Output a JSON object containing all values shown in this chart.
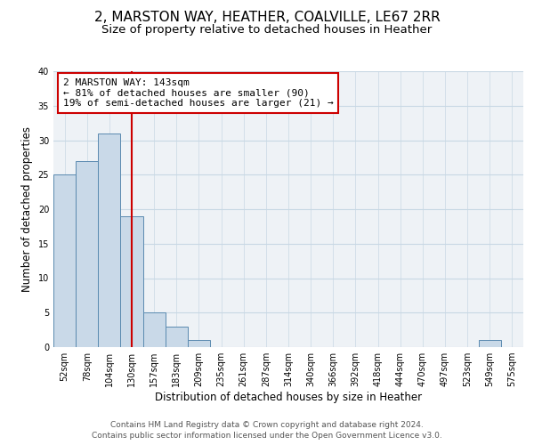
{
  "title": "2, MARSTON WAY, HEATHER, COALVILLE, LE67 2RR",
  "subtitle": "Size of property relative to detached houses in Heather",
  "xlabel": "Distribution of detached houses by size in Heather",
  "ylabel": "Number of detached properties",
  "footer_lines": [
    "Contains HM Land Registry data © Crown copyright and database right 2024.",
    "Contains public sector information licensed under the Open Government Licence v3.0."
  ],
  "bin_labels": [
    "52sqm",
    "78sqm",
    "104sqm",
    "130sqm",
    "157sqm",
    "183sqm",
    "209sqm",
    "235sqm",
    "261sqm",
    "287sqm",
    "314sqm",
    "340sqm",
    "366sqm",
    "392sqm",
    "418sqm",
    "444sqm",
    "470sqm",
    "497sqm",
    "523sqm",
    "549sqm",
    "575sqm"
  ],
  "bar_values": [
    25,
    27,
    31,
    19,
    5,
    3,
    1,
    0,
    0,
    0,
    0,
    0,
    0,
    0,
    0,
    0,
    0,
    0,
    0,
    1,
    0
  ],
  "bar_color": "#c9d9e8",
  "bar_edge_color": "#5a8ab0",
  "vline_x": 3.5,
  "vline_color": "#cc0000",
  "annotation_line1": "2 MARSTON WAY: 143sqm",
  "annotation_line2": "← 81% of detached houses are smaller (90)",
  "annotation_line3": "19% of semi-detached houses are larger (21) →",
  "ylim": [
    0,
    40
  ],
  "yticks": [
    0,
    5,
    10,
    15,
    20,
    25,
    30,
    35,
    40
  ],
  "grid_color": "#c8d8e4",
  "background_color": "#eef2f6",
  "title_fontsize": 11,
  "subtitle_fontsize": 9.5,
  "axis_label_fontsize": 8.5,
  "tick_fontsize": 7,
  "annotation_fontsize": 8,
  "footer_fontsize": 6.5
}
